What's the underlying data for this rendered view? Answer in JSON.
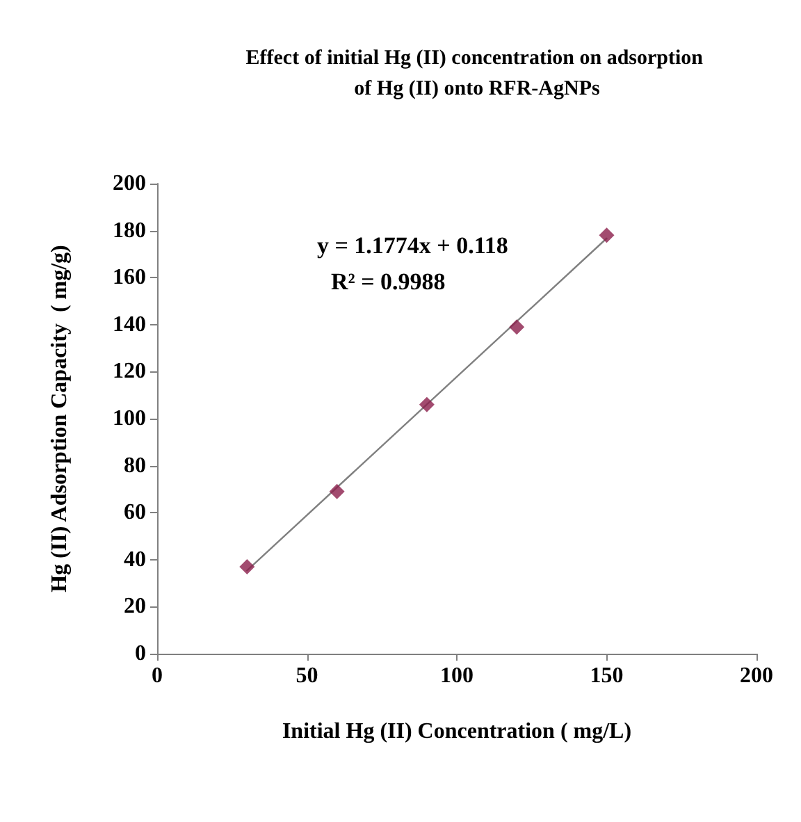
{
  "chart_data": {
    "type": "scatter",
    "title": "Effect of initial Hg (II) concentration on adsorption of Hg (II) onto RFR-AgNPs",
    "xlabel": "Initial Hg (II) Concentration ( mg/L)",
    "ylabel": "Hg (II) Adsorption Capacity  ( mg/g)",
    "series": [
      {
        "color": "#8b1e4b",
        "x": [
          30,
          60,
          90,
          120,
          150
        ],
        "values": [
          37,
          69,
          106,
          139,
          178
        ],
        "marker": "diamond"
      },
      {
        "type": "line",
        "color": "#808080",
        "x": [
          30,
          150
        ],
        "values": [
          35.4,
          176.7
        ],
        "marker": "none",
        "line_style": "solid"
      }
    ],
    "xlim": [
      0,
      200
    ],
    "xticks": [
      0,
      50,
      100,
      150,
      200
    ],
    "ylim": [
      0,
      200
    ],
    "yticks": [
      0,
      20,
      40,
      60,
      80,
      100,
      120,
      140,
      160,
      180,
      200
    ],
    "grid": false,
    "annotations": [
      "y = 1.1774x + 0.118",
      "R² = 0.9988"
    ]
  }
}
